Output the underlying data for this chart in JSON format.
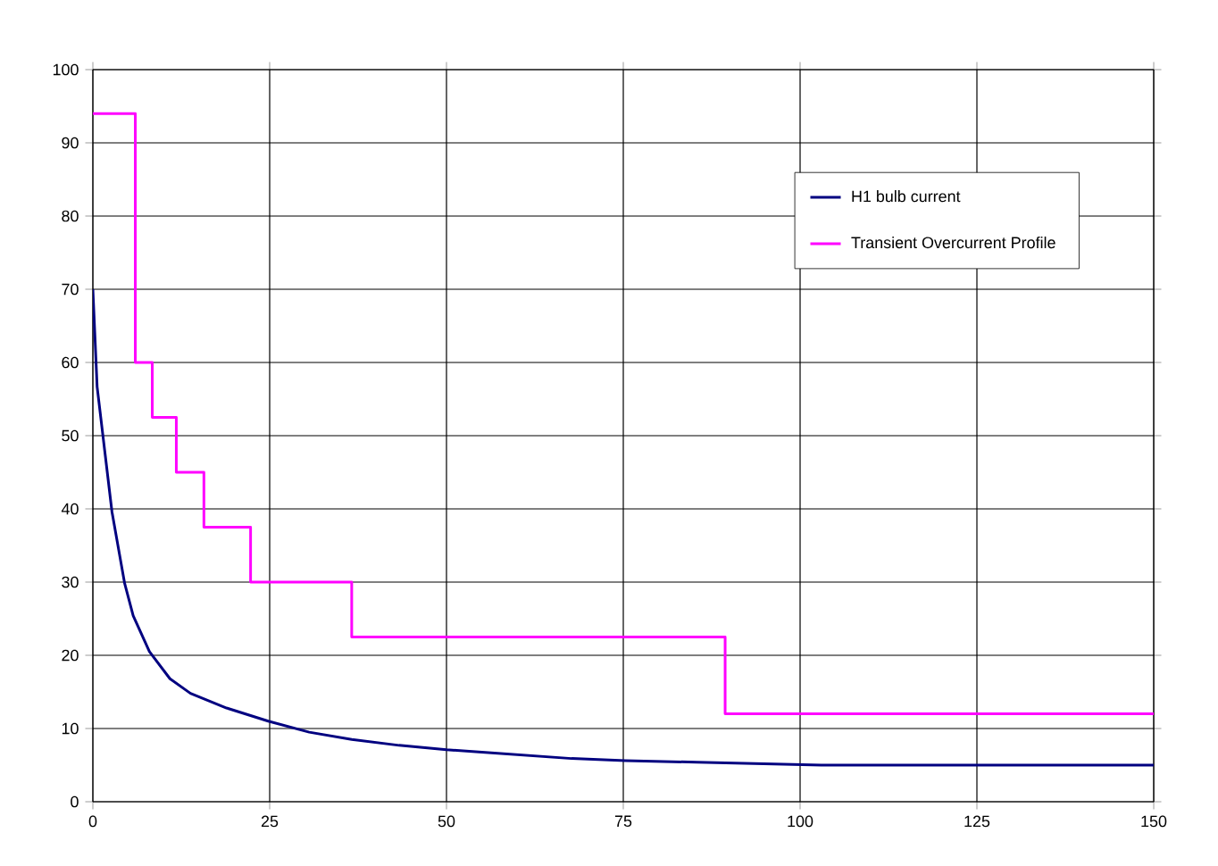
{
  "chart_data": {
    "type": "line",
    "xlim": [
      0,
      150
    ],
    "xticks": [
      0,
      25,
      50,
      75,
      100,
      125,
      150
    ],
    "ylim": [
      0,
      100
    ],
    "yticks": [
      0,
      10,
      20,
      30,
      40,
      50,
      60,
      70,
      80,
      90,
      100
    ],
    "grid": true,
    "legend": "top right",
    "series": [
      {
        "name": "H1 bulb current",
        "color": "#000080",
        "x": [
          0,
          0.6,
          2.7,
          4.5,
          5.7,
          8,
          10.9,
          13.8,
          18.9,
          24.8,
          30.6,
          36.6,
          43.3,
          50,
          55.9,
          67.7,
          75.3,
          85.4,
          103,
          150
        ],
        "values": [
          70,
          56.7,
          39.6,
          29.8,
          25.4,
          20.5,
          16.8,
          14.8,
          12.8,
          11,
          9.5,
          8.5,
          7.7,
          7.1,
          6.7,
          5.9,
          5.6,
          5.4,
          5,
          5
        ]
      },
      {
        "name": "Transient Overcurrent Profile",
        "color": "#ff00ff",
        "type": "step",
        "x": [
          0,
          6,
          8.4,
          11.8,
          15.7,
          22.3,
          36.6,
          89.4,
          150
        ],
        "values": [
          94,
          60,
          52.5,
          45,
          37.5,
          30,
          22.5,
          12,
          12
        ]
      }
    ]
  }
}
